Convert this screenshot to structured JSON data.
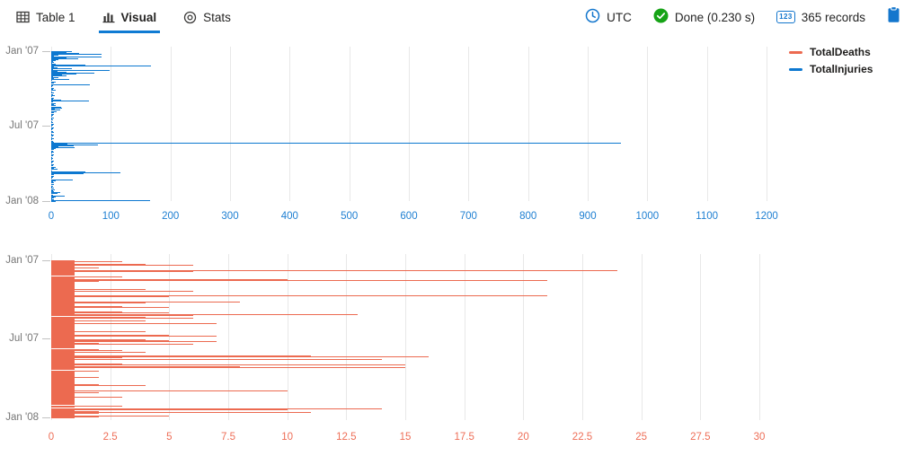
{
  "header": {
    "tabs": [
      {
        "label": "Table 1"
      },
      {
        "label": "Visual"
      },
      {
        "label": "Stats"
      }
    ],
    "active_tab": "Visual",
    "status": {
      "timezone": "UTC",
      "done": "Done (0.230 s)",
      "records": "365 records",
      "records_badge": "123"
    }
  },
  "colors": {
    "accent_blue": "#0f7bd3",
    "series_injuries": "#0d78d0",
    "series_deaths": "#ec6a50",
    "axis_gray": "#767676",
    "gridline": "#e8e8e8",
    "success_green": "#16a316"
  },
  "legend": [
    {
      "label": "TotalDeaths",
      "color": "#ec6a50"
    },
    {
      "label": "TotalInjuries",
      "color": "#0d78d0"
    }
  ],
  "chart_data": [
    {
      "type": "bar",
      "orientation": "horizontal",
      "name": "TotalInjuries",
      "color": "#0d78d0",
      "axis_label_color": "#2080d2",
      "xlim": [
        0,
        1200
      ],
      "x_ticks": [
        0,
        100,
        200,
        300,
        400,
        500,
        600,
        700,
        800,
        900,
        1000,
        1100,
        1200
      ],
      "y_axis": "date",
      "y_ticks": [
        {
          "label": "Jan '07",
          "day": 0
        },
        {
          "label": "Jul '07",
          "day": 181
        },
        {
          "label": "Jan '08",
          "day": 365
        }
      ],
      "grid": true,
      "points_format": "[day_offset_in_2007, value]",
      "points": [
        [
          0,
          35
        ],
        [
          1,
          14
        ],
        [
          2,
          25
        ],
        [
          3,
          10
        ],
        [
          5,
          46
        ],
        [
          7,
          85
        ],
        [
          9,
          12
        ],
        [
          11,
          5
        ],
        [
          14,
          84
        ],
        [
          16,
          25
        ],
        [
          18,
          45
        ],
        [
          20,
          12
        ],
        [
          22,
          8
        ],
        [
          25,
          3
        ],
        [
          27,
          5
        ],
        [
          29,
          2
        ],
        [
          31,
          8
        ],
        [
          33,
          58
        ],
        [
          35,
          167
        ],
        [
          37,
          4
        ],
        [
          39,
          10
        ],
        [
          41,
          35
        ],
        [
          43,
          3
        ],
        [
          45,
          98
        ],
        [
          46,
          55
        ],
        [
          48,
          11
        ],
        [
          50,
          25
        ],
        [
          52,
          72
        ],
        [
          54,
          42
        ],
        [
          56,
          18
        ],
        [
          58,
          8
        ],
        [
          60,
          25
        ],
        [
          62,
          3
        ],
        [
          64,
          12
        ],
        [
          66,
          5
        ],
        [
          68,
          30
        ],
        [
          71,
          2
        ],
        [
          74,
          8
        ],
        [
          77,
          4
        ],
        [
          80,
          65
        ],
        [
          83,
          3
        ],
        [
          86,
          2
        ],
        [
          89,
          5
        ],
        [
          92,
          3
        ],
        [
          95,
          8
        ],
        [
          98,
          2
        ],
        [
          101,
          4
        ],
        [
          104,
          3
        ],
        [
          107,
          6
        ],
        [
          110,
          2
        ],
        [
          113,
          4
        ],
        [
          116,
          3
        ],
        [
          119,
          17
        ],
        [
          121,
          64
        ],
        [
          123,
          3
        ],
        [
          126,
          8
        ],
        [
          129,
          4
        ],
        [
          132,
          8
        ],
        [
          135,
          17
        ],
        [
          137,
          18
        ],
        [
          140,
          6
        ],
        [
          143,
          15
        ],
        [
          146,
          9
        ],
        [
          149,
          5
        ],
        [
          152,
          4
        ],
        [
          155,
          3
        ],
        [
          158,
          2
        ],
        [
          161,
          4
        ],
        [
          164,
          2
        ],
        [
          167,
          3
        ],
        [
          170,
          2
        ],
        [
          173,
          3
        ],
        [
          176,
          5
        ],
        [
          179,
          3
        ],
        [
          182,
          2
        ],
        [
          185,
          4
        ],
        [
          188,
          3
        ],
        [
          191,
          2
        ],
        [
          194,
          3
        ],
        [
          197,
          4
        ],
        [
          200,
          2
        ],
        [
          203,
          5
        ],
        [
          206,
          3
        ],
        [
          209,
          2
        ],
        [
          212,
          4
        ],
        [
          215,
          2
        ],
        [
          218,
          3
        ],
        [
          221,
          5
        ],
        [
          222,
          467
        ],
        [
          223,
          956
        ],
        [
          225,
          27
        ],
        [
          227,
          78
        ],
        [
          229,
          38
        ],
        [
          231,
          12
        ],
        [
          233,
          39
        ],
        [
          236,
          8
        ],
        [
          239,
          4
        ],
        [
          242,
          3
        ],
        [
          245,
          5
        ],
        [
          248,
          2
        ],
        [
          251,
          4
        ],
        [
          254,
          3
        ],
        [
          257,
          2
        ],
        [
          260,
          3
        ],
        [
          263,
          2
        ],
        [
          266,
          4
        ],
        [
          269,
          3
        ],
        [
          272,
          2
        ],
        [
          275,
          5
        ],
        [
          278,
          3
        ],
        [
          281,
          8
        ],
        [
          284,
          5
        ],
        [
          287,
          10
        ],
        [
          290,
          2
        ],
        [
          293,
          58
        ],
        [
          294,
          38
        ],
        [
          296,
          116
        ],
        [
          298,
          55
        ],
        [
          300,
          5
        ],
        [
          303,
          4
        ],
        [
          306,
          3
        ],
        [
          309,
          2
        ],
        [
          312,
          36
        ],
        [
          314,
          8
        ],
        [
          317,
          3
        ],
        [
          320,
          4
        ],
        [
          324,
          4
        ],
        [
          327,
          3
        ],
        [
          330,
          2
        ],
        [
          333,
          4
        ],
        [
          336,
          6
        ],
        [
          339,
          3
        ],
        [
          342,
          5
        ],
        [
          344,
          15
        ],
        [
          346,
          10
        ],
        [
          349,
          3
        ],
        [
          352,
          23
        ],
        [
          354,
          8
        ],
        [
          356,
          4
        ],
        [
          358,
          2
        ],
        [
          360,
          5
        ],
        [
          362,
          166
        ],
        [
          364,
          8
        ]
      ]
    },
    {
      "type": "bar",
      "orientation": "horizontal",
      "name": "TotalDeaths",
      "color": "#ec6a50",
      "axis_label_color": "#ee6e57",
      "xlim": [
        0,
        30
      ],
      "x_ticks": [
        0,
        2.5,
        5,
        7.5,
        10,
        12.5,
        15,
        17.5,
        20,
        22.5,
        25,
        27.5,
        30
      ],
      "y_axis": "date",
      "y_ticks": [
        {
          "label": "Jan '07",
          "day": 0
        },
        {
          "label": "Jul '07",
          "day": 181
        },
        {
          "label": "Jan '08",
          "day": 365
        }
      ],
      "grid": true,
      "points_format": "[day_offset_in_2007, value]",
      "points": [
        [
          0,
          1
        ],
        [
          1,
          1
        ],
        [
          2,
          1
        ],
        [
          3,
          3
        ],
        [
          4,
          1
        ],
        [
          5,
          1
        ],
        [
          7,
          1
        ],
        [
          8,
          2
        ],
        [
          9,
          4
        ],
        [
          11,
          6
        ],
        [
          13,
          1
        ],
        [
          15,
          1
        ],
        [
          16,
          1
        ],
        [
          17,
          2
        ],
        [
          18,
          1
        ],
        [
          19,
          1
        ],
        [
          20,
          1
        ],
        [
          22,
          24
        ],
        [
          23,
          4
        ],
        [
          24,
          6
        ],
        [
          26,
          1
        ],
        [
          28,
          1
        ],
        [
          30,
          1
        ],
        [
          32,
          1
        ],
        [
          34,
          1
        ],
        [
          37,
          1
        ],
        [
          38,
          3
        ],
        [
          39,
          1
        ],
        [
          41,
          1
        ],
        [
          44,
          10
        ],
        [
          45,
          13
        ],
        [
          46,
          21
        ],
        [
          47,
          2
        ],
        [
          49,
          1
        ],
        [
          51,
          1
        ],
        [
          53,
          1
        ],
        [
          55,
          1
        ],
        [
          57,
          1
        ],
        [
          59,
          1
        ],
        [
          61,
          1
        ],
        [
          63,
          1
        ],
        [
          65,
          1
        ],
        [
          66,
          4
        ],
        [
          67,
          1
        ],
        [
          69,
          1
        ],
        [
          71,
          6
        ],
        [
          73,
          1
        ],
        [
          75,
          1
        ],
        [
          77,
          1
        ],
        [
          79,
          1
        ],
        [
          81,
          2
        ],
        [
          82,
          21
        ],
        [
          83,
          5
        ],
        [
          84,
          2
        ],
        [
          86,
          1
        ],
        [
          88,
          1
        ],
        [
          90,
          1
        ],
        [
          92,
          1
        ],
        [
          94,
          1
        ],
        [
          95,
          3
        ],
        [
          96,
          8
        ],
        [
          97,
          4
        ],
        [
          98,
          1
        ],
        [
          100,
          1
        ],
        [
          102,
          1
        ],
        [
          104,
          1
        ],
        [
          106,
          3
        ],
        [
          108,
          5
        ],
        [
          110,
          1
        ],
        [
          112,
          1
        ],
        [
          114,
          1
        ],
        [
          117,
          1
        ],
        [
          118,
          3
        ],
        [
          119,
          1
        ],
        [
          120,
          5
        ],
        [
          121,
          1
        ],
        [
          124,
          1
        ],
        [
          125,
          13
        ],
        [
          126,
          2
        ],
        [
          127,
          6
        ],
        [
          128,
          1
        ],
        [
          131,
          4
        ],
        [
          132,
          4
        ],
        [
          133,
          6
        ],
        [
          134,
          1
        ],
        [
          136,
          1
        ],
        [
          138,
          1
        ],
        [
          140,
          4
        ],
        [
          142,
          1
        ],
        [
          144,
          1
        ],
        [
          145,
          3
        ],
        [
          146,
          7
        ],
        [
          147,
          1
        ],
        [
          149,
          1
        ],
        [
          151,
          1
        ],
        [
          153,
          1
        ],
        [
          155,
          1
        ],
        [
          157,
          1
        ],
        [
          159,
          1
        ],
        [
          161,
          1
        ],
        [
          163,
          1
        ],
        [
          164,
          2
        ],
        [
          165,
          4
        ],
        [
          166,
          1
        ],
        [
          168,
          1
        ],
        [
          170,
          1
        ],
        [
          173,
          2
        ],
        [
          174,
          5
        ],
        [
          175,
          7
        ],
        [
          176,
          2
        ],
        [
          178,
          1
        ],
        [
          180,
          1
        ],
        [
          182,
          1
        ],
        [
          184,
          4
        ],
        [
          185,
          4
        ],
        [
          186,
          5
        ],
        [
          187,
          7
        ],
        [
          189,
          1
        ],
        [
          192,
          2
        ],
        [
          193,
          3
        ],
        [
          194,
          6
        ],
        [
          195,
          2
        ],
        [
          197,
          1
        ],
        [
          199,
          1
        ],
        [
          201,
          1
        ],
        [
          203,
          1
        ],
        [
          206,
          1
        ],
        [
          207,
          2
        ],
        [
          208,
          3
        ],
        [
          209,
          1
        ],
        [
          211,
          1
        ],
        [
          213,
          4
        ],
        [
          215,
          1
        ],
        [
          217,
          1
        ],
        [
          219,
          1
        ],
        [
          221,
          3
        ],
        [
          222,
          11
        ],
        [
          223,
          16
        ],
        [
          224,
          13
        ],
        [
          225,
          3
        ],
        [
          227,
          1
        ],
        [
          229,
          14
        ],
        [
          230,
          9
        ],
        [
          232,
          1
        ],
        [
          234,
          1
        ],
        [
          236,
          1
        ],
        [
          238,
          1
        ],
        [
          240,
          3
        ],
        [
          241,
          15
        ],
        [
          242,
          3
        ],
        [
          244,
          1
        ],
        [
          246,
          2
        ],
        [
          247,
          8
        ],
        [
          248,
          15
        ],
        [
          249,
          2
        ],
        [
          251,
          1
        ],
        [
          253,
          1
        ],
        [
          256,
          2
        ],
        [
          257,
          1
        ],
        [
          259,
          1
        ],
        [
          261,
          1
        ],
        [
          263,
          1
        ],
        [
          265,
          1
        ],
        [
          267,
          1
        ],
        [
          269,
          1
        ],
        [
          271,
          1
        ],
        [
          272,
          2
        ],
        [
          273,
          1
        ],
        [
          274,
          1
        ],
        [
          276,
          1
        ],
        [
          278,
          1
        ],
        [
          280,
          1
        ],
        [
          282,
          1
        ],
        [
          284,
          1
        ],
        [
          286,
          1
        ],
        [
          288,
          2
        ],
        [
          289,
          4
        ],
        [
          290,
          2
        ],
        [
          292,
          1
        ],
        [
          294,
          1
        ],
        [
          296,
          1
        ],
        [
          298,
          1
        ],
        [
          300,
          1
        ],
        [
          302,
          10
        ],
        [
          304,
          1
        ],
        [
          307,
          2
        ],
        [
          308,
          1
        ],
        [
          310,
          1
        ],
        [
          312,
          1
        ],
        [
          314,
          1
        ],
        [
          316,
          3
        ],
        [
          318,
          1
        ],
        [
          320,
          1
        ],
        [
          322,
          1
        ],
        [
          324,
          1
        ],
        [
          326,
          1
        ],
        [
          328,
          1
        ],
        [
          330,
          1
        ],
        [
          332,
          1
        ],
        [
          334,
          1
        ],
        [
          337,
          3
        ],
        [
          339,
          1
        ],
        [
          341,
          1
        ],
        [
          344,
          14
        ],
        [
          346,
          10
        ],
        [
          348,
          1
        ],
        [
          351,
          2
        ],
        [
          352,
          11
        ],
        [
          353,
          3
        ],
        [
          354,
          2
        ],
        [
          356,
          1
        ],
        [
          358,
          1
        ],
        [
          360,
          2
        ],
        [
          361,
          5
        ],
        [
          362,
          2
        ],
        [
          363,
          2
        ],
        [
          364,
          1
        ]
      ]
    }
  ]
}
